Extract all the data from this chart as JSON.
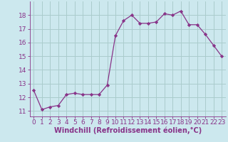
{
  "x": [
    0,
    1,
    2,
    3,
    4,
    5,
    6,
    7,
    8,
    9,
    10,
    11,
    12,
    13,
    14,
    15,
    16,
    17,
    18,
    19,
    20,
    21,
    22,
    23
  ],
  "y": [
    12.5,
    11.1,
    11.3,
    11.4,
    12.2,
    12.3,
    12.2,
    12.2,
    12.2,
    12.9,
    16.5,
    17.6,
    18.0,
    17.4,
    17.4,
    17.5,
    18.1,
    18.0,
    18.3,
    17.3,
    17.3,
    16.6,
    15.8,
    15.0
  ],
  "line_color": "#883388",
  "marker": "D",
  "marker_size": 2.2,
  "bg_color": "#cce8ee",
  "grid_color": "#aacccc",
  "xlabel": "Windchill (Refroidissement éolien,°C)",
  "xlabel_fontsize": 7,
  "tick_fontsize": 6.5,
  "ylim": [
    10.6,
    19.0
  ],
  "xlim": [
    -0.5,
    23.5
  ],
  "yticks": [
    11,
    12,
    13,
    14,
    15,
    16,
    17,
    18
  ],
  "xticks": [
    0,
    1,
    2,
    3,
    4,
    5,
    6,
    7,
    8,
    9,
    10,
    11,
    12,
    13,
    14,
    15,
    16,
    17,
    18,
    19,
    20,
    21,
    22,
    23
  ]
}
